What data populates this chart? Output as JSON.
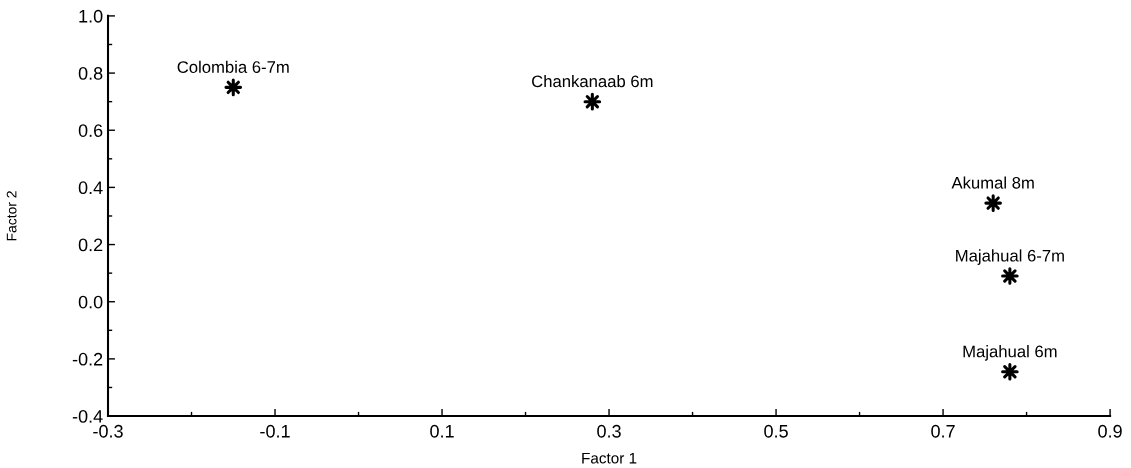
{
  "chart_data": {
    "type": "scatter",
    "xlabel": "Factor 1",
    "ylabel": "Factor 2",
    "x": [
      -0.15,
      0.28,
      0.76,
      0.78,
      0.78
    ],
    "values": [
      0.75,
      0.7,
      0.345,
      0.09,
      -0.245
    ],
    "color": "#000000",
    "marker": "star",
    "grid": false,
    "legend": false,
    "annotations": [
      {
        "text": "Colombia 6-7m",
        "x": -0.15,
        "y": 0.75
      },
      {
        "text": "Chankanaab 6m",
        "x": 0.28,
        "y": 0.7
      },
      {
        "text": "Akumal 8m",
        "x": 0.76,
        "y": 0.345
      },
      {
        "text": "Majahual 6-7m",
        "x": 0.78,
        "y": 0.09
      },
      {
        "text": "Majahual 6m",
        "x": 0.78,
        "y": -0.245
      }
    ],
    "xlim": [
      -0.3,
      0.9
    ],
    "xticks": [
      {
        "value": -0.3,
        "label": "-0.3"
      },
      {
        "value": -0.2,
        "label": null
      },
      {
        "value": -0.1,
        "label": "-0.1"
      },
      {
        "value": 0.0,
        "label": null
      },
      {
        "value": 0.1,
        "label": "0.1"
      },
      {
        "value": 0.2,
        "label": null
      },
      {
        "value": 0.3,
        "label": "0.3"
      },
      {
        "value": 0.4,
        "label": null
      },
      {
        "value": 0.5,
        "label": "0.5"
      },
      {
        "value": 0.6,
        "label": null
      },
      {
        "value": 0.7,
        "label": "0.7"
      },
      {
        "value": 0.8,
        "label": null
      },
      {
        "value": 0.9,
        "label": "0.9"
      }
    ],
    "ylim": [
      -0.4,
      1.0
    ],
    "yticks": [
      {
        "value": -0.4,
        "label": "-0.4"
      },
      {
        "value": -0.3,
        "label": null
      },
      {
        "value": -0.2,
        "label": "-0.2"
      },
      {
        "value": -0.1,
        "label": null
      },
      {
        "value": 0.0,
        "label": "0.0"
      },
      {
        "value": 0.1,
        "label": null
      },
      {
        "value": 0.2,
        "label": "0.2"
      },
      {
        "value": 0.3,
        "label": null
      },
      {
        "value": 0.4,
        "label": "0.4"
      },
      {
        "value": 0.5,
        "label": null
      },
      {
        "value": 0.6,
        "label": "0.6"
      },
      {
        "value": 0.7,
        "label": null
      },
      {
        "value": 0.8,
        "label": "0.8"
      },
      {
        "value": 0.9,
        "label": null
      },
      {
        "value": 1.0,
        "label": "1.0"
      }
    ]
  }
}
